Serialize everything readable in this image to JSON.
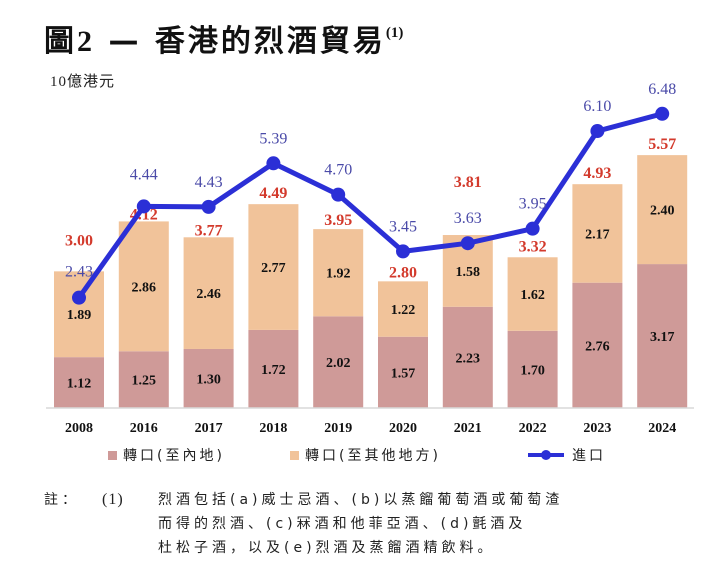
{
  "title": {
    "prefix": "圖",
    "number": "2",
    "dash": " — ",
    "text": "香港的烈酒貿易",
    "superscript": "(1)"
  },
  "unit_label": "10億港元",
  "colors": {
    "mainland": "#cf9a98",
    "other": "#f1c39a",
    "imports": "#2b2fd6",
    "total_label": "#d33a2c",
    "import_label": "#4a4aa8"
  },
  "chart_data": {
    "type": "bar",
    "subtype": "stacked-bar-with-line",
    "title": "圖2 — 香港的烈酒貿易(1)",
    "ylabel": "10億港元",
    "xlabel": "",
    "ylim": [
      0,
      7
    ],
    "grid": false,
    "categories": [
      "2008",
      "2016",
      "2017",
      "2018",
      "2019",
      "2020",
      "2021",
      "2022",
      "2023",
      "2024"
    ],
    "series": [
      {
        "name": "轉口(至內地)",
        "kind": "bar",
        "values": [
          1.12,
          1.25,
          1.3,
          1.72,
          2.02,
          1.57,
          2.23,
          1.7,
          2.76,
          3.17
        ]
      },
      {
        "name": "轉口(至其他地方)",
        "kind": "bar",
        "values": [
          1.89,
          2.86,
          2.46,
          2.77,
          1.92,
          1.22,
          1.58,
          1.62,
          2.17,
          2.4
        ]
      },
      {
        "name": "進口",
        "kind": "line",
        "values": [
          2.43,
          4.44,
          4.43,
          5.39,
          4.7,
          3.45,
          3.63,
          3.95,
          6.1,
          6.48
        ]
      }
    ],
    "totals": [
      3.0,
      4.12,
      3.77,
      4.49,
      3.95,
      2.8,
      3.81,
      3.32,
      4.93,
      5.57
    ],
    "legend": [
      "轉口(至內地)",
      "轉口(至其他地方)",
      "進口"
    ],
    "legend_position": "bottom"
  },
  "legend": {
    "mainland": "轉口(至內地)",
    "other": "轉口(至其他地方)",
    "imports": "進口"
  },
  "notes": {
    "label": "註：",
    "number": "(1)",
    "lines": [
      "烈酒包括(a)威士忌酒、(b)以蒸餾葡萄酒或葡萄渣",
      "而得的烈酒、(c)冧酒和他菲亞酒、(d)氈酒及",
      "杜松子酒，以及(e)烈酒及蒸餾酒精飲料。"
    ]
  }
}
